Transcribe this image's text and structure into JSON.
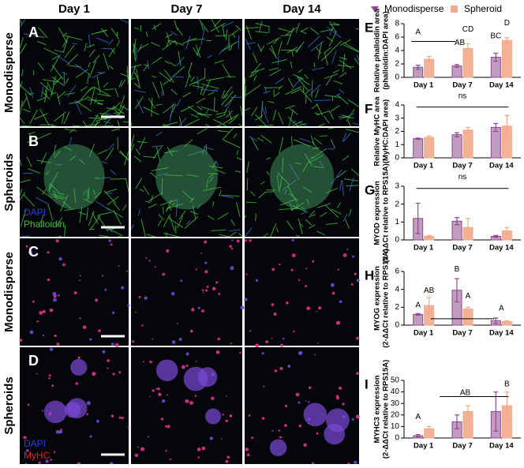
{
  "figure": {
    "columns": [
      "Day 1",
      "Day 7",
      "Day 14"
    ],
    "rows": [
      "Monodisperse",
      "Spheroids",
      "Monodisperse",
      "Spheroids"
    ],
    "panels": [
      "A",
      "B",
      "C",
      "D"
    ],
    "stains": [
      [
        "DAPI",
        "Phalloidin"
      ],
      [
        "DAPI",
        "MyHC"
      ]
    ]
  },
  "chart_data": [
    {
      "type": "bar",
      "label": "E",
      "ylabel": [
        "Relative phalloidin area",
        "(phalloidin:DAPI area)"
      ],
      "categories": [
        "Day 1",
        "Day 7",
        "Day 14"
      ],
      "series": [
        {
          "name": "Monodisperse",
          "color": "#8e4a8e",
          "values": [
            1.5,
            1.7,
            3.0
          ],
          "errors": [
            0.3,
            0.2,
            0.6
          ]
        },
        {
          "name": "Spheroid",
          "color": "#f2a98a",
          "values": [
            2.7,
            4.3,
            5.5
          ],
          "errors": [
            0.4,
            0.7,
            0.4
          ]
        }
      ],
      "ylim": [
        0,
        8
      ],
      "yticks": [
        0,
        2,
        4,
        6,
        8
      ],
      "annotations": [
        "A",
        "AB",
        "CD",
        "BC",
        "D"
      ]
    },
    {
      "type": "bar",
      "label": "F",
      "ylabel": [
        "Relative MyHC area",
        "(MyHC:DAPI area)"
      ],
      "categories": [
        "Day 1",
        "Day 7",
        "Day 14"
      ],
      "series": [
        {
          "color": "#8e4a8e",
          "values": [
            1.45,
            1.75,
            2.3
          ],
          "errors": [
            0.05,
            0.15,
            0.3
          ]
        },
        {
          "color": "#f2a98a",
          "values": [
            1.55,
            2.1,
            2.4
          ],
          "errors": [
            0.1,
            0.2,
            0.8
          ]
        }
      ],
      "ylim": [
        0,
        4
      ],
      "yticks": [
        0,
        1,
        2,
        3,
        4
      ],
      "annotations": [
        "ns"
      ]
    },
    {
      "type": "bar",
      "label": "G",
      "ylabel": [
        "MYOD expression",
        "(2-ΔΔCt relative to RPS15A)"
      ],
      "categories": [
        "Day 1",
        "Day 7",
        "Day 14"
      ],
      "series": [
        {
          "color": "#8e4a8e",
          "values": [
            1.2,
            1.05,
            0.2
          ],
          "errors": [
            0.85,
            0.2,
            0.05
          ]
        },
        {
          "color": "#f2a98a",
          "values": [
            0.2,
            0.7,
            0.5
          ],
          "errors": [
            0.05,
            0.5,
            0.2
          ]
        }
      ],
      "ylim": [
        0,
        3
      ],
      "yticks": [
        0,
        1,
        2,
        3
      ],
      "annotations": [
        "ns"
      ]
    },
    {
      "type": "bar",
      "label": "H",
      "ylabel": [
        "MYOG expression",
        "(2-ΔΔCt relative to RPS15A)"
      ],
      "categories": [
        "Day 1",
        "Day 7",
        "Day 14"
      ],
      "series": [
        {
          "color": "#8e4a8e",
          "values": [
            1.2,
            3.9,
            0.5
          ],
          "errors": [
            0.1,
            1.3,
            0.3
          ]
        },
        {
          "color": "#f2a98a",
          "values": [
            2.2,
            1.8,
            0.4
          ],
          "errors": [
            0.9,
            0.2,
            0.1
          ]
        }
      ],
      "ylim": [
        0,
        6
      ],
      "yticks": [
        0,
        2,
        4,
        6
      ],
      "annotations": [
        "A",
        "AB",
        "B",
        "A",
        "A"
      ]
    },
    {
      "type": "bar",
      "label": "I",
      "ylabel": [
        "MYHC3 expression",
        "(2-ΔΔCt relative to RPS15A)"
      ],
      "categories": [
        "Day 1",
        "Day 7",
        "Day 14"
      ],
      "series": [
        {
          "color": "#8e4a8e",
          "values": [
            2,
            14,
            23
          ],
          "errors": [
            1,
            6,
            17
          ]
        },
        {
          "color": "#f2a98a",
          "values": [
            8,
            23,
            28
          ],
          "errors": [
            2,
            5,
            12
          ]
        }
      ],
      "ylim": [
        0,
        50
      ],
      "yticks": [
        0,
        10,
        20,
        30,
        40,
        50
      ],
      "annotations": [
        "A",
        "AB",
        "B"
      ]
    }
  ]
}
